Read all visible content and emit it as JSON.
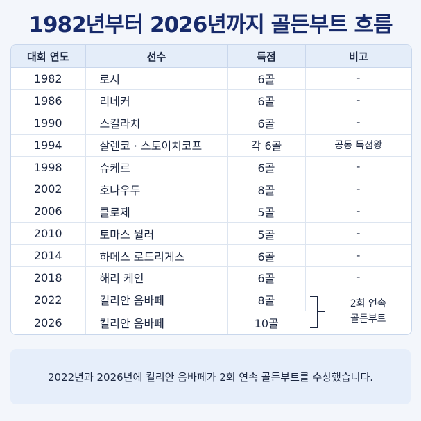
{
  "title": "1982년부터 2026년까지 골든부트 흐름",
  "table": {
    "headers": [
      "대회 연도",
      "선수",
      "득점",
      "비고"
    ],
    "rows": [
      {
        "year": "1982",
        "player": "로시",
        "goals": "6골",
        "note": "-"
      },
      {
        "year": "1986",
        "player": "리네커",
        "goals": "6골",
        "note": "-"
      },
      {
        "year": "1990",
        "player": "스킬라치",
        "goals": "6골",
        "note": "-"
      },
      {
        "year": "1994",
        "player": "살렌코 · 스토이치코프",
        "goals": "각 6골",
        "note": "공동 득점왕"
      },
      {
        "year": "1998",
        "player": "슈케르",
        "goals": "6골",
        "note": "-"
      },
      {
        "year": "2002",
        "player": "호나우두",
        "goals": "8골",
        "note": "-"
      },
      {
        "year": "2006",
        "player": "클로제",
        "goals": "5골",
        "note": "-"
      },
      {
        "year": "2010",
        "player": "토마스 뮐러",
        "goals": "5골",
        "note": "-"
      },
      {
        "year": "2014",
        "player": "하메스 로드리게스",
        "goals": "6골",
        "note": "-"
      },
      {
        "year": "2018",
        "player": "해리 케인",
        "goals": "6골",
        "note": "-"
      },
      {
        "year": "2022",
        "player": "킬리안 음바페",
        "goals": "8골"
      },
      {
        "year": "2026",
        "player": "킬리안 음바페",
        "goals": "10골"
      }
    ],
    "merged_note_line1": "2회 연속",
    "merged_note_line2": "골든부트"
  },
  "footnote": "2022년과 2026년에 킬리안 음바페가 2회 연속 골든부트를 수상했습니다."
}
